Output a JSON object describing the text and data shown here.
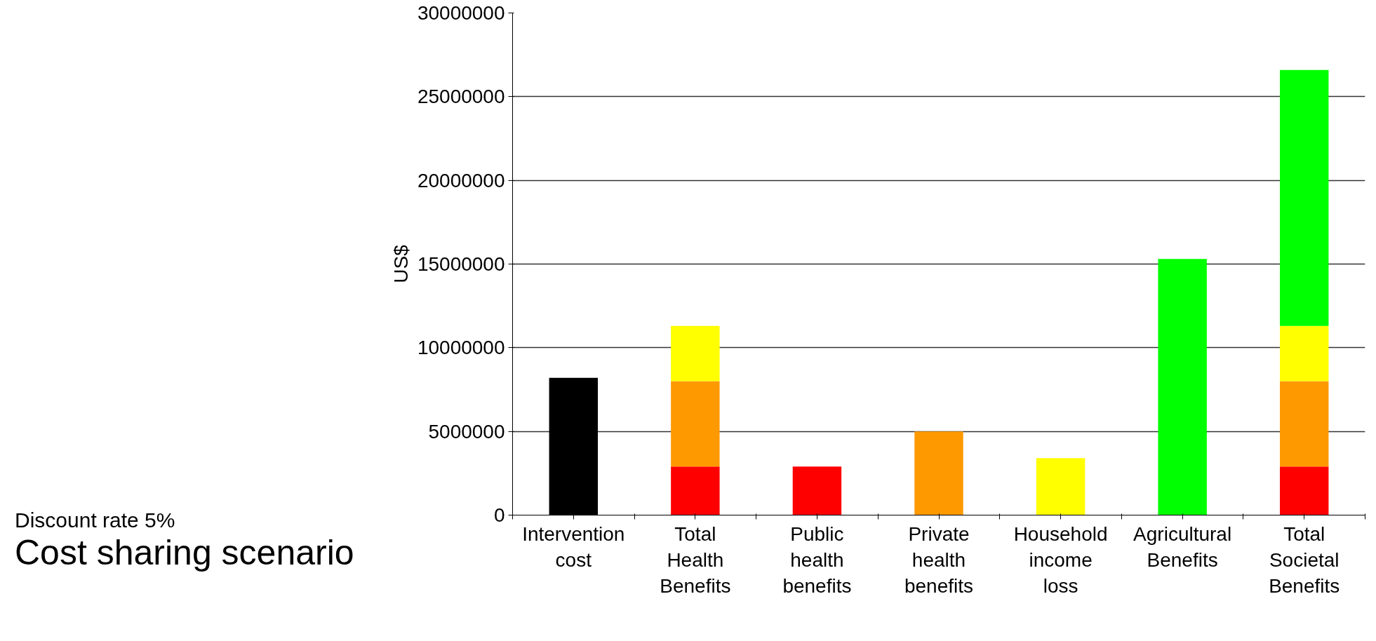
{
  "chart_data": {
    "type": "bar",
    "title": "Cost sharing scenario",
    "subtitle": "Discount rate 5%",
    "ylabel": "US$",
    "categories": [
      "Intervention cost",
      "Total Health Benefits",
      "Public health benefits",
      "Private health benefits",
      "Household income loss",
      "Agricultural Benefits",
      "Total Societal Benefits"
    ],
    "stacked": true,
    "series": [
      {
        "color": "#000000",
        "values": [
          8200000,
          null,
          null,
          null,
          null,
          null,
          null
        ]
      },
      {
        "color": "#ff0000",
        "values": [
          null,
          2900000,
          2900000,
          null,
          null,
          null,
          2900000
        ]
      },
      {
        "color": "#ff9900",
        "values": [
          null,
          5100000,
          null,
          5000000,
          null,
          null,
          5100000
        ]
      },
      {
        "color": "#ffff00",
        "values": [
          null,
          3300000,
          null,
          null,
          3400000,
          null,
          3300000
        ]
      },
      {
        "color": "#00ff00",
        "values": [
          null,
          null,
          null,
          null,
          null,
          15300000,
          15300000
        ]
      }
    ],
    "ylim": [
      0,
      30000000
    ],
    "yticks": [
      0,
      5000000,
      10000000,
      15000000,
      20000000,
      25000000,
      30000000
    ],
    "grid": "y"
  }
}
